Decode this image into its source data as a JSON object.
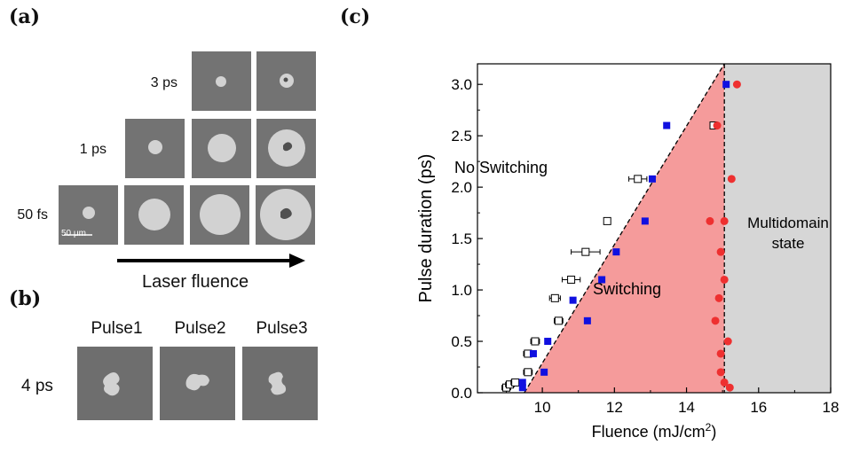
{
  "panel_a": {
    "label": "(a)",
    "rows": [
      {
        "label": "3 ps",
        "tiles": 2
      },
      {
        "label": "1 ps",
        "tiles": 3
      },
      {
        "label": "50 fs",
        "tiles": 4
      }
    ],
    "scale_bar": "50 μm",
    "arrow_label": "Laser fluence"
  },
  "panel_b": {
    "label": "(b)",
    "row_label": "4 ps",
    "pulses": [
      "Pulse1",
      "Pulse2",
      "Pulse3"
    ]
  },
  "panel_c": {
    "label": "(c)",
    "region_labels": {
      "no_switching": "No Switching",
      "switching": "Switching",
      "multidomain_line1": "Multidomain",
      "multidomain_line2": "state"
    }
  },
  "chart_data": {
    "type": "scatter",
    "xlabel": "Fluence (mJ/cm²)",
    "ylabel": "Pulse duration (ps)",
    "xlim": [
      8.2,
      18
    ],
    "ylim": [
      0,
      3.2
    ],
    "xticks": [
      10,
      12,
      14,
      16,
      18
    ],
    "yticks": [
      0.0,
      0.5,
      1.0,
      1.5,
      2.0,
      2.5,
      3.0
    ],
    "colors": {
      "switching_region": "#f59b9b",
      "multidomain_region": "#d6d6d6",
      "blue_squares": "#1010e0",
      "red_circles": "#ee3030"
    },
    "series": [
      {
        "marker": "filled-square-blue",
        "x": [
          9.45,
          9.45,
          10.05,
          9.75,
          10.15,
          11.25,
          10.85,
          11.65,
          12.05,
          12.85,
          13.05,
          13.45,
          15.1
        ],
        "y": [
          0.05,
          0.1,
          0.2,
          0.38,
          0.5,
          0.7,
          0.9,
          1.1,
          1.37,
          1.67,
          2.08,
          2.6,
          3.0
        ]
      },
      {
        "marker": "open-square-black",
        "x": [
          9.0,
          9.1,
          9.25,
          9.6,
          9.6,
          9.8,
          10.45,
          10.35,
          10.8,
          11.2,
          11.8,
          12.65,
          14.75
        ],
        "y": [
          0.05,
          0.08,
          0.1,
          0.2,
          0.38,
          0.5,
          0.7,
          0.92,
          1.1,
          1.37,
          1.67,
          2.08,
          2.6
        ],
        "xerr": [
          0.12,
          0.12,
          0.12,
          0.12,
          0.12,
          0.12,
          0.12,
          0.15,
          0.25,
          0.4,
          0,
          0.25,
          0
        ]
      },
      {
        "marker": "filled-circle-red",
        "x": [
          15.2,
          15.05,
          14.95,
          14.95,
          15.15,
          14.8,
          14.9,
          15.05,
          14.95,
          15.05,
          14.65,
          15.25,
          14.85,
          15.4
        ],
        "y": [
          0.05,
          0.1,
          0.2,
          0.38,
          0.5,
          0.7,
          0.92,
          1.1,
          1.37,
          1.67,
          1.67,
          2.08,
          2.6,
          3.0
        ]
      }
    ],
    "boundaries": {
      "switching_line": {
        "x": [
          9.5,
          15.05
        ],
        "y": [
          0,
          3.2
        ]
      },
      "multidomain_line_x": 15.05
    }
  }
}
